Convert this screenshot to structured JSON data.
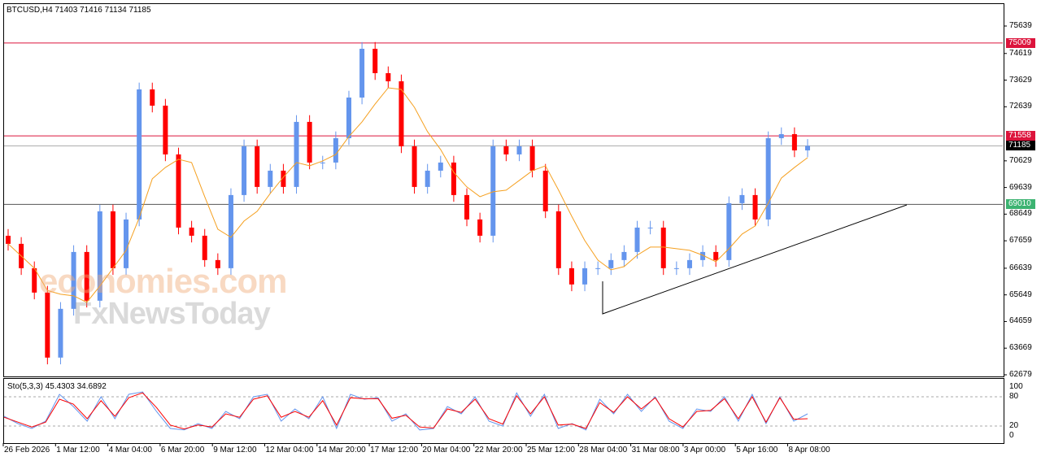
{
  "header": {
    "title": "BTCUSD,H4  71403 71416 71134 71185"
  },
  "price_axis": [
    "75639",
    "74619",
    "73629",
    "72639",
    "70629",
    "69639",
    "68649",
    "67659",
    "66639",
    "65649",
    "64659",
    "63669",
    "62679"
  ],
  "levels": [
    {
      "label": "75009",
      "value": 75009,
      "color": "#dc143c"
    },
    {
      "label": "71558",
      "value": 71558,
      "color": "#dc143c"
    },
    {
      "label": "71185",
      "value": 71185,
      "color": "#000000"
    },
    {
      "label": "69010",
      "value": 69010,
      "color": "#3cb371"
    }
  ],
  "stochastic": {
    "label": "Sto(5,3,3) 45.4303 34.6892",
    "axis": [
      "100",
      "80",
      "20",
      "0"
    ]
  },
  "dates": [
    "26 Feb 2026",
    "1 Mar 12:00",
    "4 Mar 04:00",
    "6 Mar 20:00",
    "9 Mar 12:00",
    "12 Mar 04:00",
    "14 Mar 20:00",
    "17 Mar 12:00",
    "20 Mar 04:00",
    "22 Mar 20:00",
    "25 Mar 12:00",
    "28 Mar 04:00",
    "31 Mar 08:00",
    "3 Apr 00:00",
    "5 Apr 16:00",
    "8 Apr 08:00"
  ],
  "watermark": {
    "line1": "economies.com",
    "line2": "FxNewsToday"
  },
  "chart_data": {
    "type": "candlestick",
    "symbol": "BTCUSD",
    "timeframe": "H4",
    "ylim": [
      62679,
      75639
    ],
    "closes": [
      67545,
      66640,
      65734,
      63318,
      65130,
      67243,
      65432,
      68753,
      66640,
      68451,
      73284,
      72680,
      70868,
      68149,
      67847,
      66942,
      66640,
      69358,
      71169,
      69660,
      70264,
      69660,
      72076,
      70566,
      70566,
      71471,
      72981,
      74793,
      73887,
      73585,
      71169,
      69660,
      70264,
      70566,
      69358,
      68451,
      67847,
      71169,
      70868,
      71169,
      70264,
      68753,
      66640,
      66036,
      66640,
      66640,
      66942,
      67243,
      68149,
      68149,
      66640,
      66640,
      66942,
      67243,
      66942,
      69056,
      69358,
      68451,
      71471,
      71622,
      71018,
      71185
    ],
    "stoch_k": [
      40,
      25,
      15,
      30,
      85,
      60,
      30,
      80,
      35,
      85,
      90,
      50,
      15,
      12,
      25,
      15,
      50,
      35,
      80,
      85,
      30,
      55,
      35,
      80,
      15,
      85,
      75,
      78,
      30,
      45,
      12,
      15,
      60,
      45,
      80,
      30,
      20,
      88,
      40,
      85,
      15,
      25,
      12,
      75,
      45,
      85,
      50,
      80,
      30,
      15,
      55,
      50,
      80,
      30,
      85,
      25,
      80,
      30,
      45
    ],
    "stoch_d": [
      38,
      28,
      18,
      28,
      75,
      65,
      35,
      72,
      40,
      78,
      88,
      58,
      22,
      14,
      22,
      18,
      45,
      38,
      75,
      82,
      38,
      50,
      38,
      72,
      22,
      78,
      76,
      76,
      36,
      42,
      18,
      16,
      55,
      48,
      75,
      35,
      24,
      82,
      45,
      80,
      22,
      24,
      15,
      68,
      48,
      80,
      55,
      78,
      35,
      18,
      50,
      52,
      76,
      35,
      80,
      28,
      78,
      34,
      35
    ],
    "ma_period": 5,
    "trendline": {
      "from": {
        "date": "28 Mar 04:00",
        "price": 64900
      },
      "to": {
        "price": 69010
      }
    }
  }
}
